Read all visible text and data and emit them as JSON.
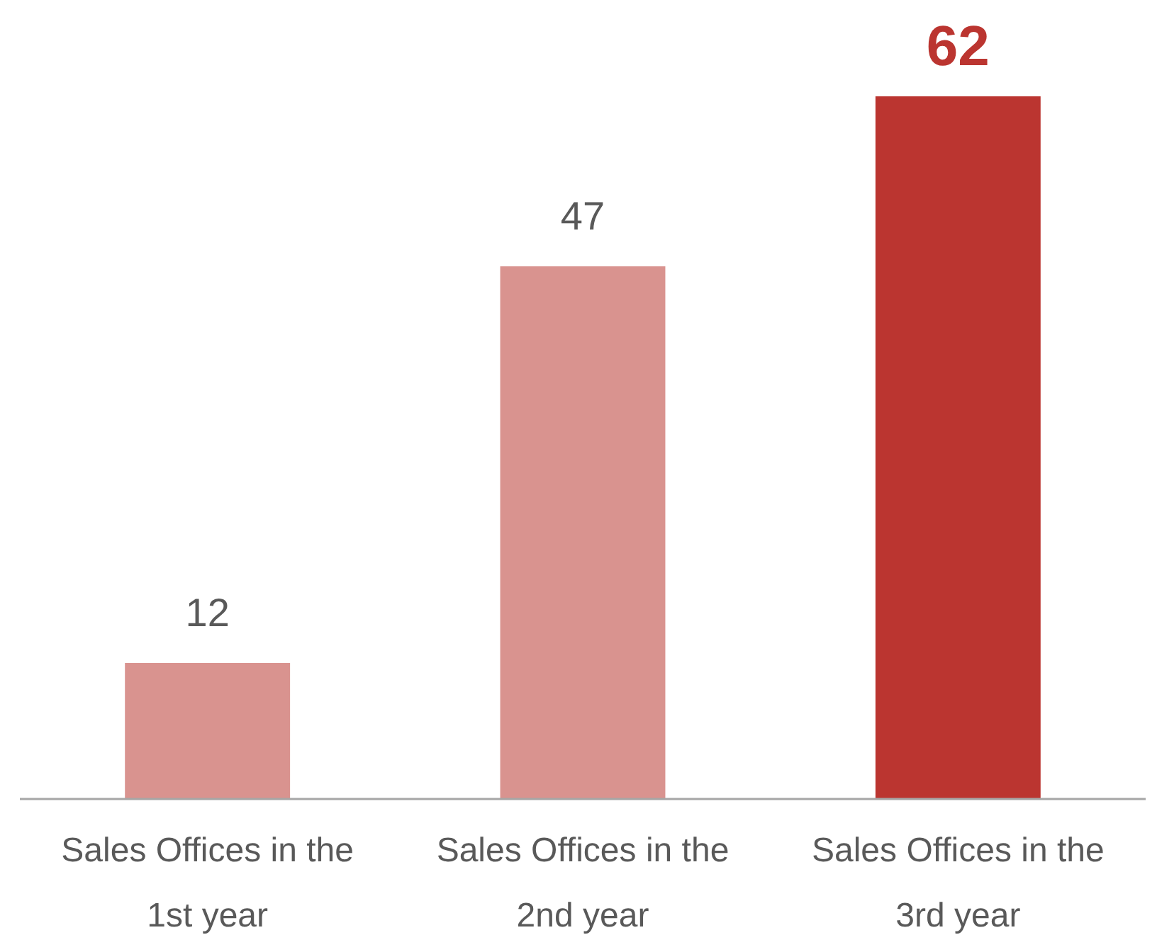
{
  "chart_data": {
    "type": "bar",
    "categories": [
      "Sales Offices in the 1st year",
      "Sales Offices in the 2nd year",
      "Sales Offices in the 3rd year"
    ],
    "values": [
      12,
      47,
      62
    ],
    "colors": [
      "#d9938f",
      "#d9938f",
      "#bb3530"
    ],
    "data_labels": true
  }
}
